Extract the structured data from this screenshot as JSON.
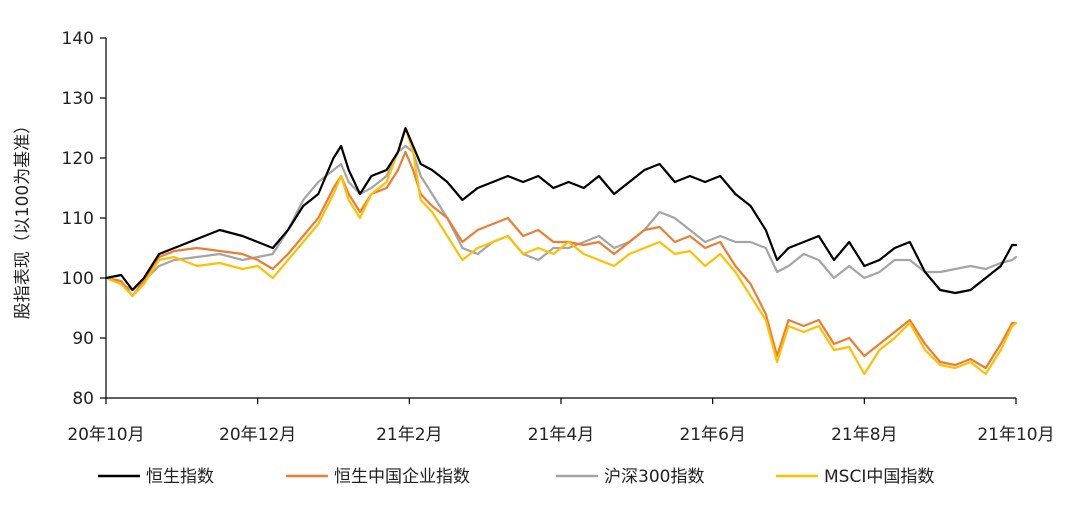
{
  "chart_data": {
    "type": "line",
    "ylabel": "股指表现（以100为基准）",
    "ylim": [
      80,
      140
    ],
    "yticks": [
      80,
      90,
      100,
      110,
      120,
      130,
      140
    ],
    "x_tick_labels": [
      "20年10月",
      "20年12月",
      "21年2月",
      "21年4月",
      "21年6月",
      "21年8月",
      "21年10月"
    ],
    "x_tick_positions": [
      0,
      2,
      4,
      6,
      8,
      10,
      12
    ],
    "x_axis_unit": "month offset from 20年10月",
    "legend_position": "bottom",
    "series": [
      {
        "name": "恒生指数",
        "color": "#000000",
        "points": [
          [
            0,
            100
          ],
          [
            0.2,
            100.5
          ],
          [
            0.35,
            98
          ],
          [
            0.5,
            100
          ],
          [
            0.7,
            104
          ],
          [
            0.9,
            105
          ],
          [
            1.2,
            106.5
          ],
          [
            1.5,
            108
          ],
          [
            1.8,
            107
          ],
          [
            2.0,
            106
          ],
          [
            2.2,
            105
          ],
          [
            2.4,
            108
          ],
          [
            2.6,
            112
          ],
          [
            2.8,
            114
          ],
          [
            3.0,
            120
          ],
          [
            3.1,
            122
          ],
          [
            3.2,
            118
          ],
          [
            3.35,
            114
          ],
          [
            3.5,
            117
          ],
          [
            3.7,
            118
          ],
          [
            3.85,
            121
          ],
          [
            3.95,
            125
          ],
          [
            4.05,
            122
          ],
          [
            4.15,
            119
          ],
          [
            4.3,
            118
          ],
          [
            4.5,
            116
          ],
          [
            4.7,
            113
          ],
          [
            4.9,
            115
          ],
          [
            5.1,
            116
          ],
          [
            5.3,
            117
          ],
          [
            5.5,
            116
          ],
          [
            5.7,
            117
          ],
          [
            5.9,
            115
          ],
          [
            6.1,
            116
          ],
          [
            6.3,
            115
          ],
          [
            6.5,
            117
          ],
          [
            6.7,
            114
          ],
          [
            6.9,
            116
          ],
          [
            7.1,
            118
          ],
          [
            7.3,
            119
          ],
          [
            7.5,
            116
          ],
          [
            7.7,
            117
          ],
          [
            7.9,
            116
          ],
          [
            8.1,
            117
          ],
          [
            8.3,
            114
          ],
          [
            8.5,
            112
          ],
          [
            8.7,
            108
          ],
          [
            8.85,
            103
          ],
          [
            9.0,
            105
          ],
          [
            9.2,
            106
          ],
          [
            9.4,
            107
          ],
          [
            9.6,
            103
          ],
          [
            9.8,
            106
          ],
          [
            10.0,
            102
          ],
          [
            10.2,
            103
          ],
          [
            10.4,
            105
          ],
          [
            10.6,
            106
          ],
          [
            10.8,
            101
          ],
          [
            11.0,
            98
          ],
          [
            11.2,
            97.5
          ],
          [
            11.4,
            98
          ],
          [
            11.6,
            100
          ],
          [
            11.8,
            102
          ],
          [
            11.95,
            105.5
          ],
          [
            12.0,
            105.5
          ]
        ]
      },
      {
        "name": "恒生中国企业指数",
        "color": "#ED7D31",
        "points": [
          [
            0,
            100
          ],
          [
            0.2,
            99.5
          ],
          [
            0.35,
            97
          ],
          [
            0.5,
            99.5
          ],
          [
            0.7,
            103.5
          ],
          [
            0.9,
            104.5
          ],
          [
            1.2,
            105
          ],
          [
            1.5,
            104.5
          ],
          [
            1.8,
            104
          ],
          [
            2.0,
            103
          ],
          [
            2.2,
            101.5
          ],
          [
            2.4,
            104
          ],
          [
            2.6,
            107
          ],
          [
            2.8,
            110
          ],
          [
            3.0,
            115
          ],
          [
            3.1,
            117
          ],
          [
            3.2,
            114
          ],
          [
            3.35,
            111
          ],
          [
            3.5,
            114
          ],
          [
            3.7,
            115
          ],
          [
            3.85,
            118
          ],
          [
            3.95,
            121
          ],
          [
            4.05,
            118
          ],
          [
            4.15,
            114
          ],
          [
            4.3,
            112
          ],
          [
            4.5,
            110
          ],
          [
            4.7,
            106
          ],
          [
            4.9,
            108
          ],
          [
            5.1,
            109
          ],
          [
            5.3,
            110
          ],
          [
            5.5,
            107
          ],
          [
            5.7,
            108
          ],
          [
            5.9,
            106
          ],
          [
            6.1,
            106
          ],
          [
            6.3,
            105.5
          ],
          [
            6.5,
            106
          ],
          [
            6.7,
            104
          ],
          [
            6.9,
            106
          ],
          [
            7.1,
            108
          ],
          [
            7.3,
            108.5
          ],
          [
            7.5,
            106
          ],
          [
            7.7,
            107
          ],
          [
            7.9,
            105
          ],
          [
            8.1,
            106
          ],
          [
            8.3,
            102
          ],
          [
            8.5,
            99
          ],
          [
            8.7,
            94
          ],
          [
            8.85,
            87
          ],
          [
            9.0,
            93
          ],
          [
            9.2,
            92
          ],
          [
            9.4,
            93
          ],
          [
            9.6,
            89
          ],
          [
            9.8,
            90
          ],
          [
            10.0,
            87
          ],
          [
            10.2,
            89
          ],
          [
            10.4,
            91
          ],
          [
            10.6,
            93
          ],
          [
            10.8,
            89
          ],
          [
            11.0,
            86
          ],
          [
            11.2,
            85.5
          ],
          [
            11.4,
            86.5
          ],
          [
            11.6,
            85
          ],
          [
            11.8,
            89
          ],
          [
            11.95,
            92.5
          ],
          [
            12.0,
            92.5
          ]
        ]
      },
      {
        "name": "沪深300指数",
        "color": "#A5A5A5",
        "points": [
          [
            0,
            100
          ],
          [
            0.2,
            99
          ],
          [
            0.35,
            98
          ],
          [
            0.5,
            99.5
          ],
          [
            0.7,
            102
          ],
          [
            0.9,
            103
          ],
          [
            1.2,
            103.5
          ],
          [
            1.5,
            104
          ],
          [
            1.8,
            103
          ],
          [
            2.0,
            103.5
          ],
          [
            2.2,
            104
          ],
          [
            2.4,
            108
          ],
          [
            2.6,
            113
          ],
          [
            2.8,
            116
          ],
          [
            3.0,
            118
          ],
          [
            3.1,
            119
          ],
          [
            3.2,
            116
          ],
          [
            3.35,
            114
          ],
          [
            3.5,
            115
          ],
          [
            3.7,
            117
          ],
          [
            3.85,
            121
          ],
          [
            3.95,
            122
          ],
          [
            4.05,
            121
          ],
          [
            4.15,
            117
          ],
          [
            4.3,
            114
          ],
          [
            4.5,
            110
          ],
          [
            4.7,
            105
          ],
          [
            4.9,
            104
          ],
          [
            5.1,
            106
          ],
          [
            5.3,
            107
          ],
          [
            5.5,
            104
          ],
          [
            5.7,
            103
          ],
          [
            5.9,
            105
          ],
          [
            6.1,
            105
          ],
          [
            6.3,
            106
          ],
          [
            6.5,
            107
          ],
          [
            6.7,
            105
          ],
          [
            6.9,
            106
          ],
          [
            7.1,
            108
          ],
          [
            7.3,
            111
          ],
          [
            7.5,
            110
          ],
          [
            7.7,
            108
          ],
          [
            7.9,
            106
          ],
          [
            8.1,
            107
          ],
          [
            8.3,
            106
          ],
          [
            8.5,
            106
          ],
          [
            8.7,
            105
          ],
          [
            8.85,
            101
          ],
          [
            9.0,
            102
          ],
          [
            9.2,
            104
          ],
          [
            9.4,
            103
          ],
          [
            9.6,
            100
          ],
          [
            9.8,
            102
          ],
          [
            10.0,
            100
          ],
          [
            10.2,
            101
          ],
          [
            10.4,
            103
          ],
          [
            10.6,
            103
          ],
          [
            10.8,
            101
          ],
          [
            11.0,
            101
          ],
          [
            11.2,
            101.5
          ],
          [
            11.4,
            102
          ],
          [
            11.6,
            101.5
          ],
          [
            11.8,
            102.5
          ],
          [
            11.95,
            103
          ],
          [
            12.0,
            103.5
          ]
        ]
      },
      {
        "name": "MSCI中国指数",
        "color": "#FFC000",
        "points": [
          [
            0,
            100
          ],
          [
            0.2,
            99
          ],
          [
            0.35,
            97
          ],
          [
            0.5,
            99
          ],
          [
            0.7,
            103
          ],
          [
            0.9,
            103.5
          ],
          [
            1.2,
            102
          ],
          [
            1.5,
            102.5
          ],
          [
            1.8,
            101.5
          ],
          [
            2.0,
            102
          ],
          [
            2.2,
            100
          ],
          [
            2.4,
            103
          ],
          [
            2.6,
            106
          ],
          [
            2.8,
            109
          ],
          [
            3.0,
            114
          ],
          [
            3.1,
            117
          ],
          [
            3.2,
            113
          ],
          [
            3.35,
            110
          ],
          [
            3.5,
            114
          ],
          [
            3.7,
            116
          ],
          [
            3.85,
            121
          ],
          [
            3.95,
            125
          ],
          [
            4.05,
            121
          ],
          [
            4.15,
            113
          ],
          [
            4.3,
            111
          ],
          [
            4.5,
            107
          ],
          [
            4.7,
            103
          ],
          [
            4.9,
            105
          ],
          [
            5.1,
            106
          ],
          [
            5.3,
            107
          ],
          [
            5.5,
            104
          ],
          [
            5.7,
            105
          ],
          [
            5.9,
            104
          ],
          [
            6.1,
            106
          ],
          [
            6.3,
            104
          ],
          [
            6.5,
            103
          ],
          [
            6.7,
            102
          ],
          [
            6.9,
            104
          ],
          [
            7.1,
            105
          ],
          [
            7.3,
            106
          ],
          [
            7.5,
            104
          ],
          [
            7.7,
            104.5
          ],
          [
            7.9,
            102
          ],
          [
            8.1,
            104
          ],
          [
            8.3,
            101
          ],
          [
            8.5,
            97
          ],
          [
            8.7,
            93
          ],
          [
            8.85,
            86
          ],
          [
            9.0,
            92
          ],
          [
            9.2,
            91
          ],
          [
            9.4,
            92
          ],
          [
            9.6,
            88
          ],
          [
            9.8,
            88.5
          ],
          [
            10.0,
            84
          ],
          [
            10.2,
            88
          ],
          [
            10.4,
            90
          ],
          [
            10.6,
            92.5
          ],
          [
            10.8,
            88
          ],
          [
            11.0,
            85.5
          ],
          [
            11.2,
            85
          ],
          [
            11.4,
            86
          ],
          [
            11.6,
            84
          ],
          [
            11.8,
            88
          ],
          [
            11.95,
            92
          ],
          [
            12.0,
            92.5
          ]
        ]
      }
    ]
  }
}
